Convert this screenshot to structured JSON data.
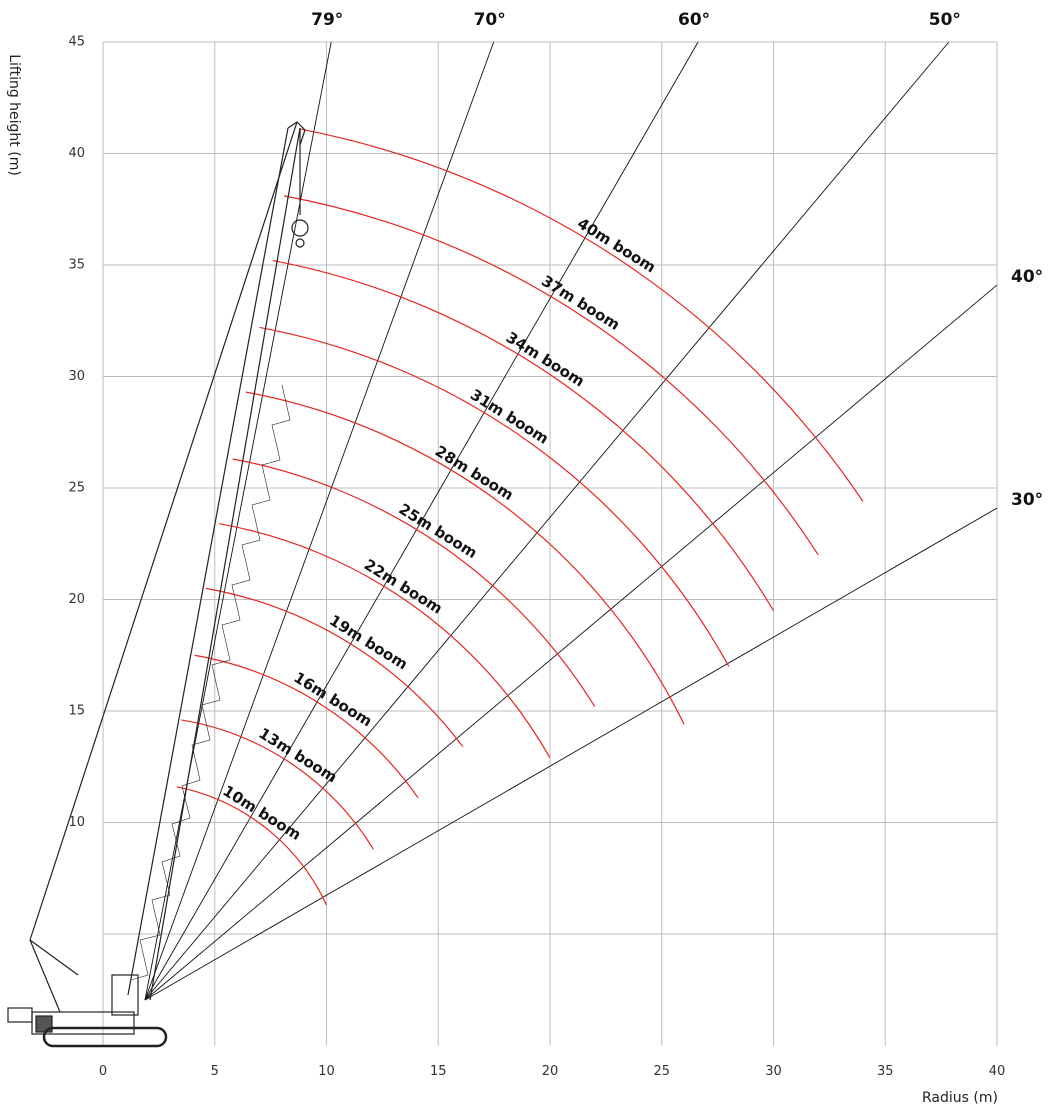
{
  "chart_data": {
    "type": "range",
    "xlabel": "Radius (m)",
    "ylabel": "Lifting height (m)",
    "xlim": [
      0,
      40
    ],
    "ylim": [
      0,
      45
    ],
    "xticks": [
      0,
      5,
      10,
      15,
      20,
      25,
      30,
      35,
      40
    ],
    "yticks": [
      10,
      15,
      20,
      25,
      30,
      35,
      40,
      45
    ],
    "grid": true,
    "color": "#e8251f",
    "angle_lines": [
      {
        "value": 79,
        "label": "79°"
      },
      {
        "value": 70,
        "label": "70°"
      },
      {
        "value": 60,
        "label": "60°"
      },
      {
        "value": 50,
        "label": "50°"
      },
      {
        "value": 40,
        "label": "40°"
      },
      {
        "value": 30,
        "label": "30°"
      }
    ],
    "booms": [
      {
        "name": "10m boom",
        "x": [
          3.3,
          10
        ],
        "y": [
          11.6,
          6.3
        ]
      },
      {
        "name": "13m boom",
        "x": [
          3.5,
          12.1
        ],
        "y": [
          14.6,
          8.8
        ]
      },
      {
        "name": "16m boom",
        "x": [
          4.1,
          14.1
        ],
        "y": [
          17.5,
          11.1
        ]
      },
      {
        "name": "19m boom",
        "x": [
          4.6,
          16.1
        ],
        "y": [
          20.5,
          13.4
        ]
      },
      {
        "name": "22m boom",
        "x": [
          5.2,
          20
        ],
        "y": [
          23.4,
          12.9
        ]
      },
      {
        "name": "25m boom",
        "x": [
          5.8,
          22
        ],
        "y": [
          26.3,
          15.2
        ]
      },
      {
        "name": "28m boom",
        "x": [
          6.4,
          26
        ],
        "y": [
          29.3,
          14.4
        ]
      },
      {
        "name": "31m boom",
        "x": [
          7,
          28
        ],
        "y": [
          32.2,
          17
        ]
      },
      {
        "name": "34m boom",
        "x": [
          7.6,
          30
        ],
        "y": [
          35.2,
          19.5
        ]
      },
      {
        "name": "37m boom",
        "x": [
          8.1,
          32
        ],
        "y": [
          38.1,
          22
        ]
      },
      {
        "name": "40m boom",
        "x": [
          8.8,
          34
        ],
        "y": [
          41.1,
          24.4
        ]
      }
    ]
  }
}
